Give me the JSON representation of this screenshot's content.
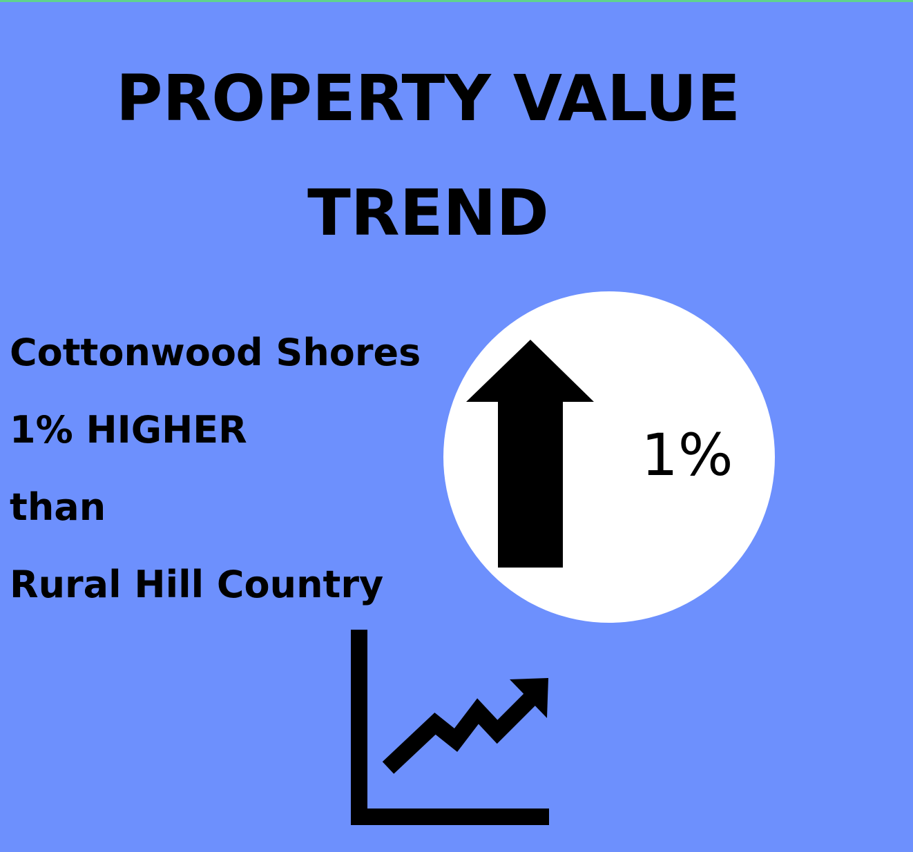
{
  "header": {
    "title": "PROPERTY VALUE TREND"
  },
  "body": {
    "lines": [
      "Cottonwood Shores",
      "1% HIGHER",
      "than",
      "Rural Hill Country"
    ]
  },
  "badge": {
    "label": "1%"
  }
}
